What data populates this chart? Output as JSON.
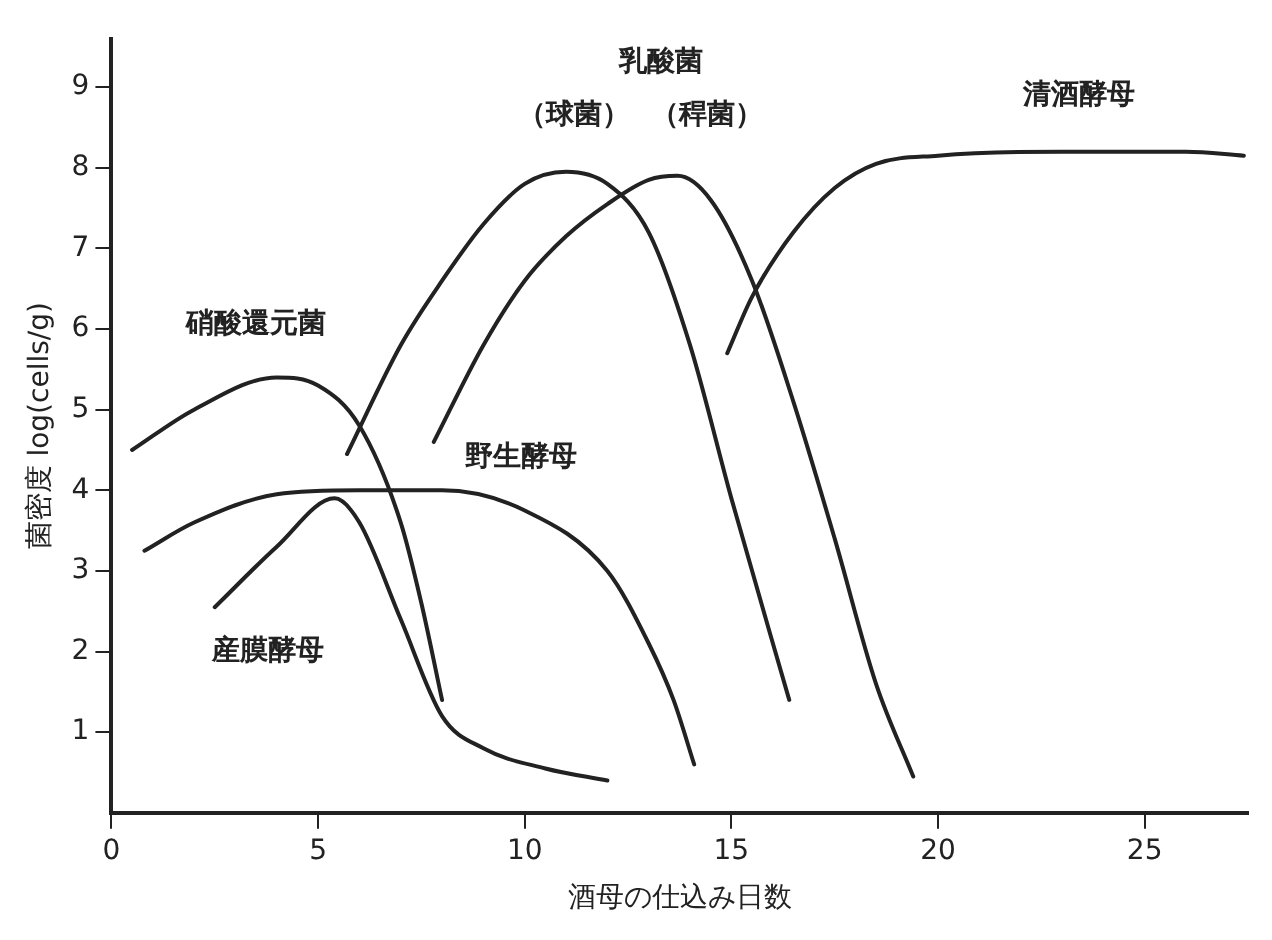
{
  "chart_data": {
    "type": "line",
    "xlabel": "酒母の仕込み日数",
    "ylabel": "菌密度 log(cells/g)",
    "xlim": [
      0,
      27.5
    ],
    "ylim": [
      0,
      9.6
    ],
    "xticks": [
      0,
      5,
      10,
      15,
      20,
      25
    ],
    "yticks": [
      1,
      2,
      3,
      4,
      5,
      6,
      7,
      8,
      9
    ],
    "grid": false,
    "legend": false,
    "marker": "none",
    "line_style": "solid",
    "annotations": [
      "乳酸菌"
    ],
    "series": [
      {
        "name": "硝酸還元菌",
        "color": "#222222",
        "x": [
          0.5,
          2,
          4,
          5,
          6,
          7,
          7.5,
          8
        ],
        "values": [
          4.5,
          5.0,
          5.4,
          5.3,
          4.8,
          3.6,
          2.6,
          1.4
        ]
      },
      {
        "name": "野生酵母",
        "color": "#222222",
        "x": [
          0.8,
          2,
          4,
          6,
          8,
          10,
          12,
          13,
          13.6,
          14.1
        ],
        "values": [
          3.25,
          3.6,
          3.95,
          4.0,
          4.0,
          3.75,
          3.0,
          2.1,
          1.4,
          0.6
        ]
      },
      {
        "name": "産膜酵母",
        "color": "#222222",
        "x": [
          2.5,
          4,
          5.4,
          6,
          7,
          8,
          9,
          10.5,
          12
        ],
        "values": [
          2.55,
          3.3,
          3.9,
          3.6,
          2.4,
          1.2,
          0.8,
          0.55,
          0.4
        ]
      },
      {
        "name": "（球菌）",
        "color": "#222222",
        "x": [
          5.7,
          7,
          8,
          9,
          10,
          11,
          12,
          13,
          14,
          15,
          16.4
        ],
        "values": [
          4.45,
          5.8,
          6.6,
          7.3,
          7.8,
          7.95,
          7.8,
          7.2,
          5.8,
          3.9,
          1.4
        ]
      },
      {
        "name": "（稈菌）",
        "color": "#222222",
        "x": [
          7.8,
          9,
          10,
          11,
          12,
          13,
          13.7,
          14.5,
          15.5,
          16.5,
          17.5,
          18.5,
          19.4
        ],
        "values": [
          4.6,
          5.8,
          6.6,
          7.15,
          7.55,
          7.85,
          7.9,
          7.6,
          6.6,
          5.1,
          3.4,
          1.6,
          0.45
        ]
      },
      {
        "name": "清酒酵母",
        "color": "#222222",
        "x": [
          14.9,
          15.5,
          16.5,
          17.5,
          18.5,
          20,
          23,
          26,
          27.4
        ],
        "values": [
          5.7,
          6.4,
          7.2,
          7.75,
          8.05,
          8.15,
          8.2,
          8.2,
          8.15
        ]
      }
    ]
  }
}
